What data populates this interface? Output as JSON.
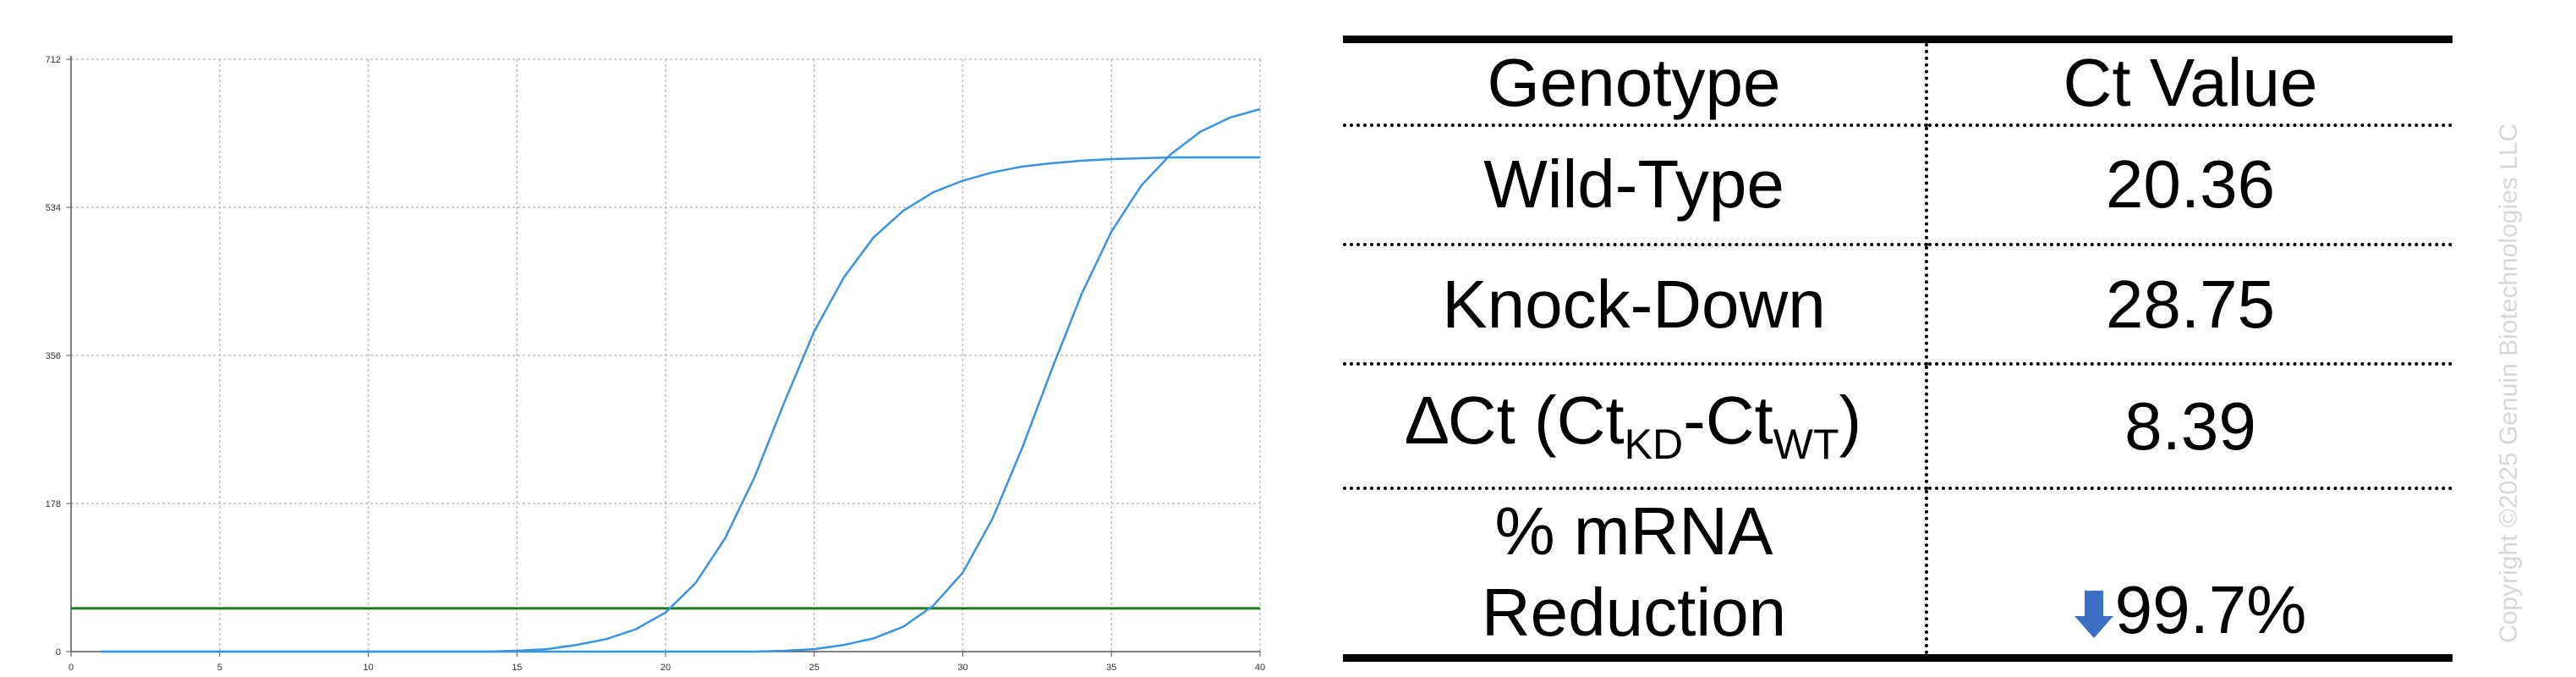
{
  "chart_data": {
    "type": "line",
    "title": "",
    "xlabel": "",
    "ylabel": "",
    "xlim": [
      0,
      40
    ],
    "ylim": [
      0,
      712
    ],
    "x_ticks": [
      0,
      5,
      10,
      15,
      20,
      25,
      30,
      35,
      40
    ],
    "y_ticks": [
      0,
      178,
      356,
      534,
      712
    ],
    "grid": true,
    "threshold": 52,
    "colors": {
      "curves": "#3a93e0",
      "threshold": "#1f7a1f",
      "grid": "#bdbdbd",
      "axis": "#555555"
    },
    "series": [
      {
        "x": [
          1,
          2,
          3,
          4,
          5,
          6,
          7,
          8,
          9,
          10,
          11,
          12,
          13,
          14,
          15,
          16,
          17,
          18,
          19,
          20,
          21,
          22,
          23,
          24,
          25,
          26,
          27,
          28,
          29,
          30,
          31,
          32,
          33,
          34,
          35,
          36,
          37,
          38,
          39,
          40
        ],
        "y": [
          0,
          0,
          0,
          0,
          0,
          0,
          0,
          0,
          0,
          0,
          0,
          0,
          0,
          0,
          1,
          3,
          8,
          15,
          27,
          47,
          82,
          136,
          210,
          300,
          385,
          450,
          498,
          530,
          552,
          566,
          576,
          583,
          587,
          590,
          592,
          593,
          594,
          594,
          594,
          594
        ]
      },
      {
        "x": [
          1,
          2,
          3,
          4,
          5,
          6,
          7,
          8,
          9,
          10,
          11,
          12,
          13,
          14,
          15,
          16,
          17,
          18,
          19,
          20,
          21,
          22,
          23,
          24,
          25,
          26,
          27,
          28,
          29,
          30,
          31,
          32,
          33,
          34,
          35,
          36,
          37,
          38,
          39,
          40
        ],
        "y": [
          0,
          0,
          0,
          0,
          0,
          0,
          0,
          0,
          0,
          0,
          0,
          0,
          0,
          0,
          0,
          0,
          0,
          0,
          0,
          0,
          0,
          0,
          0,
          1,
          3,
          8,
          16,
          30,
          55,
          95,
          160,
          245,
          340,
          430,
          505,
          560,
          598,
          625,
          642,
          652
        ]
      }
    ]
  },
  "table": {
    "header": {
      "col1": "Genotype",
      "col2": "Ct Value"
    },
    "wild_type": {
      "label": "Wild-Type",
      "value": "20.36"
    },
    "knock_down": {
      "label": "Knock-Down",
      "value": "28.75"
    },
    "delta_ct": {
      "label_prefix": "∆Ct (Ct",
      "sub1": "KD",
      "label_mid": "-Ct",
      "sub2": "WT",
      "label_suffix": ")",
      "value": "8.39"
    },
    "reduction": {
      "label_line1": "% mRNA",
      "label_line2": "Reduction",
      "value": "99.7%",
      "arrow_icon": "down-arrow-icon",
      "arrow_color": "#3c6fc4"
    }
  },
  "watermark": "Copyright ©2025 Genuin Biotechnologies LLC"
}
